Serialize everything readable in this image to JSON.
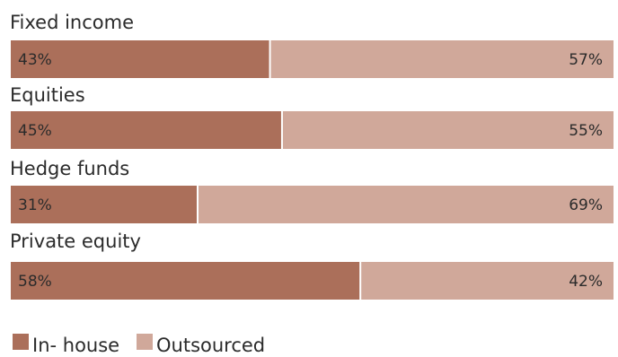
{
  "chart_data": {
    "type": "bar",
    "orientation": "horizontal",
    "stacked": true,
    "percent": true,
    "title": "",
    "xlabel": "",
    "ylabel": "",
    "xlim": [
      0,
      100
    ],
    "grid": false,
    "legend_position": "bottom-left",
    "categories": [
      "Fixed income",
      "Equities",
      "Hedge funds",
      "Private equity"
    ],
    "series": [
      {
        "name": "In- house",
        "color": "#AB6F5A",
        "values": [
          43,
          45,
          31,
          58
        ]
      },
      {
        "name": "Outsourced",
        "color": "#D0A89A",
        "values": [
          57,
          55,
          69,
          42
        ]
      }
    ],
    "data_labels": [
      [
        "43%",
        "57%"
      ],
      [
        "45%",
        "55%"
      ],
      [
        "31%",
        "69%"
      ],
      [
        "58%",
        "42%"
      ]
    ]
  }
}
